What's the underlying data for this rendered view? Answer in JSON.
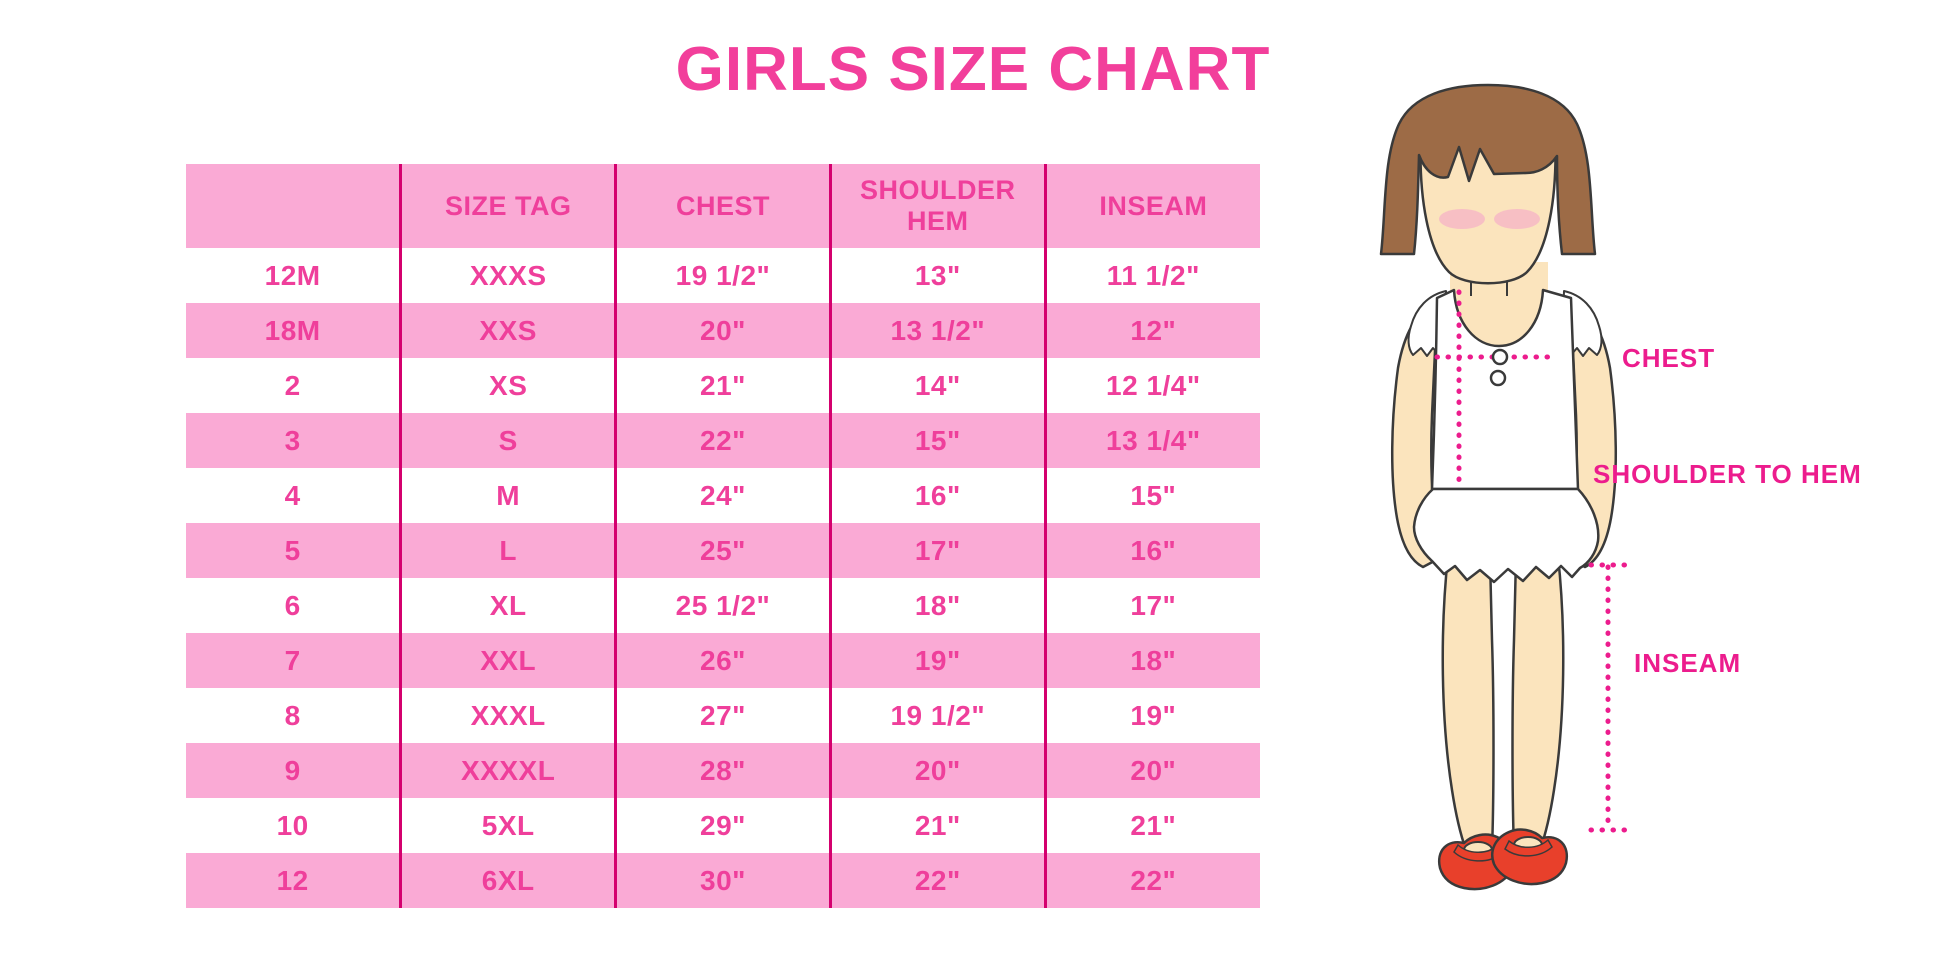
{
  "title": "GIRLS SIZE CHART",
  "colors": {
    "title_pink": "#F23F9B",
    "row_pink": "#FAAAD5",
    "text_pink": "#EF3F9B",
    "divider": "#D4006E",
    "label_magenta": "#EC1C8D",
    "hair_brown": "#9D6B46",
    "skin": "#FBE4BD",
    "blush": "#F5B3C7",
    "shoe_red": "#E8402B"
  },
  "table": {
    "columns": [
      "",
      "SIZE TAG",
      "CHEST",
      "SHOULDER HEM",
      "INSEAM"
    ],
    "rows": [
      [
        "12M",
        "XXXS",
        "19 1/2\"",
        "13\"",
        "11 1/2\""
      ],
      [
        "18M",
        "XXS",
        "20\"",
        "13 1/2\"",
        "12\""
      ],
      [
        "2",
        "XS",
        "21\"",
        "14\"",
        "12 1/4\""
      ],
      [
        "3",
        "S",
        "22\"",
        "15\"",
        "13 1/4\""
      ],
      [
        "4",
        "M",
        "24\"",
        "16\"",
        "15\""
      ],
      [
        "5",
        "L",
        "25\"",
        "17\"",
        "16\""
      ],
      [
        "6",
        "XL",
        "25 1/2\"",
        "18\"",
        "17\""
      ],
      [
        "7",
        "XXL",
        "26\"",
        "19\"",
        "18\""
      ],
      [
        "8",
        "XXXL",
        "27\"",
        "19 1/2\"",
        "19\""
      ],
      [
        "9",
        "XXXXL",
        "28\"",
        "20\"",
        "20\""
      ],
      [
        "10",
        "5XL",
        "29\"",
        "21\"",
        "21\""
      ],
      [
        "12",
        "6XL",
        "30\"",
        "22\"",
        "22\""
      ]
    ]
  },
  "figure": {
    "labels": {
      "chest": "CHEST",
      "shoulder_to_hem": "SHOULDER TO HEM",
      "inseam": "INSEAM"
    }
  },
  "chart_data": {
    "type": "table",
    "title": "GIRLS SIZE CHART",
    "columns": [
      "",
      "SIZE TAG",
      "CHEST",
      "SHOULDER HEM",
      "INSEAM"
    ],
    "rows": [
      [
        "12M",
        "XXXS",
        "19 1/2\"",
        "13\"",
        "11 1/2\""
      ],
      [
        "18M",
        "XXS",
        "20\"",
        "13 1/2\"",
        "12\""
      ],
      [
        "2",
        "XS",
        "21\"",
        "14\"",
        "12 1/4\""
      ],
      [
        "3",
        "S",
        "22\"",
        "15\"",
        "13 1/4\""
      ],
      [
        "4",
        "M",
        "24\"",
        "16\"",
        "15\""
      ],
      [
        "5",
        "L",
        "25\"",
        "17\"",
        "16\""
      ],
      [
        "6",
        "XL",
        "25 1/2\"",
        "18\"",
        "17\""
      ],
      [
        "7",
        "XXL",
        "26\"",
        "19\"",
        "18\""
      ],
      [
        "8",
        "XXXL",
        "27\"",
        "19 1/2\"",
        "19\""
      ],
      [
        "9",
        "XXXXL",
        "28\"",
        "20\"",
        "20\""
      ],
      [
        "10",
        "5XL",
        "29\"",
        "21\"",
        "21\""
      ],
      [
        "12",
        "6XL",
        "30\"",
        "22\"",
        "22\""
      ]
    ],
    "annotations": [
      "CHEST",
      "SHOULDER TO HEM",
      "INSEAM"
    ],
    "legend_position": "none",
    "grid": "vertical-dividers-only",
    "row_striping": "alternating pink/white starting white"
  }
}
